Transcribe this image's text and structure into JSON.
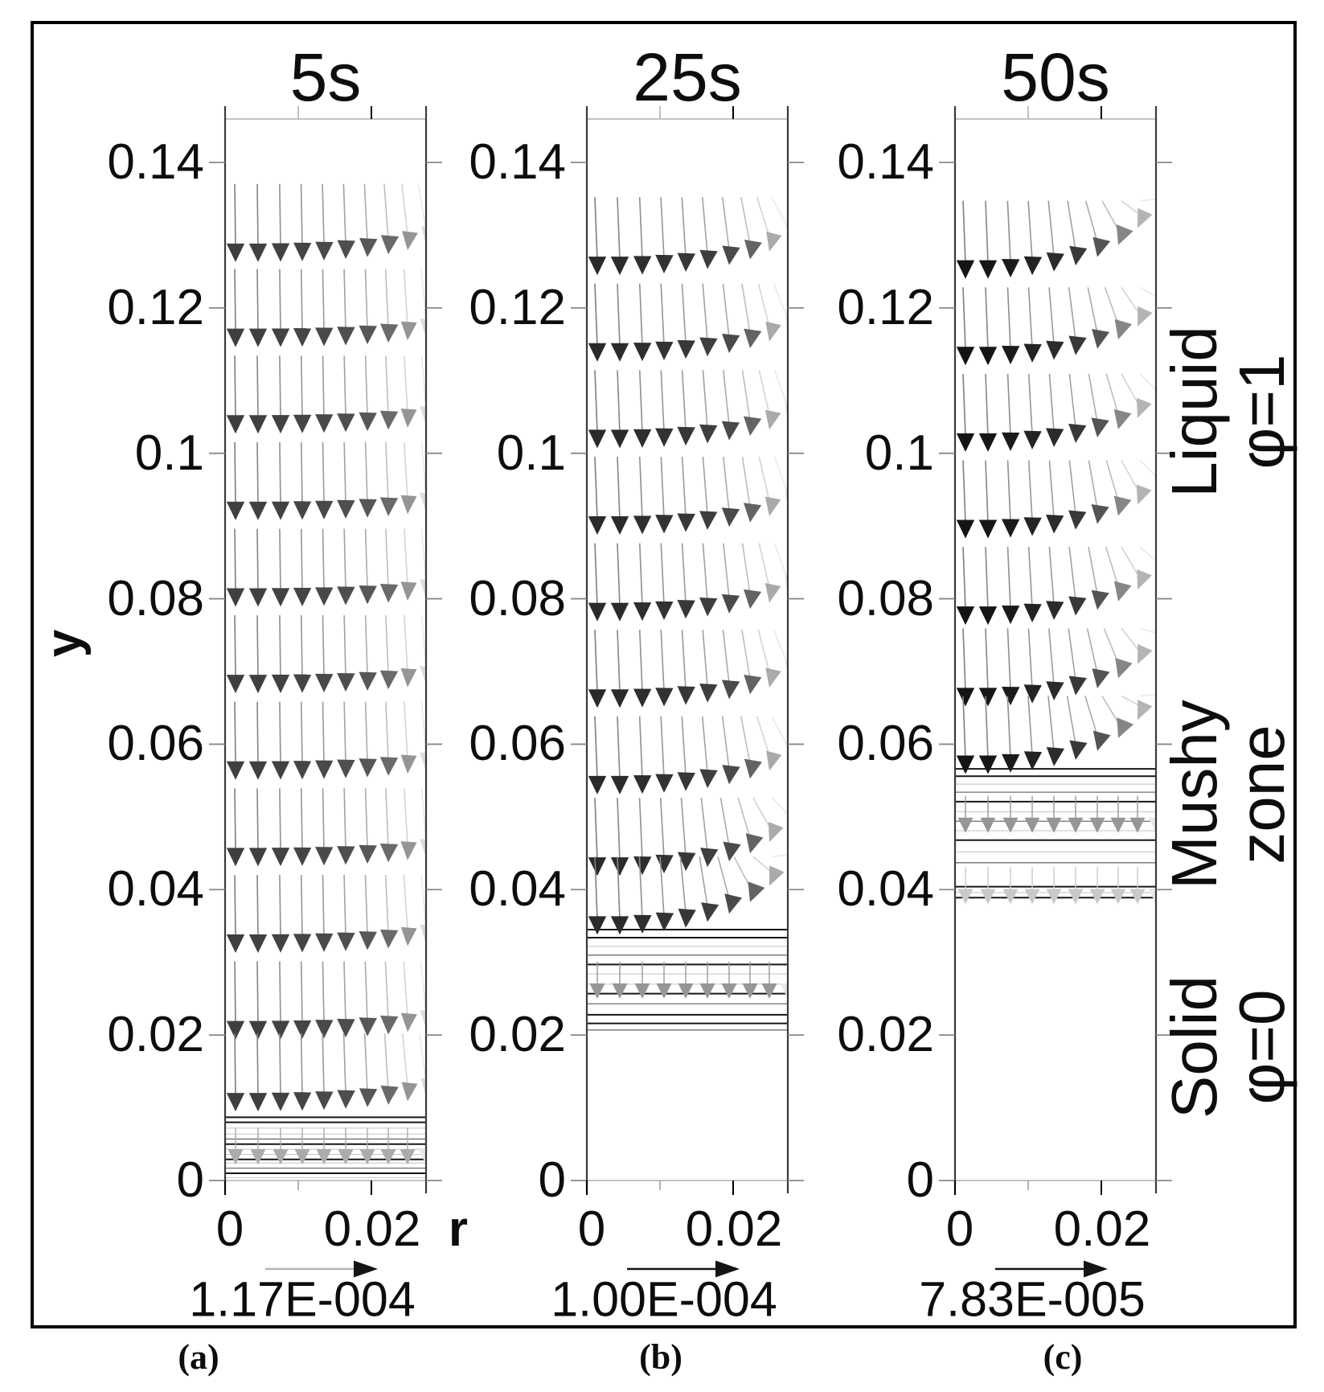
{
  "axis": {
    "x_title": "r",
    "y_title": "y"
  },
  "zones": [
    {
      "line1": "Liquid",
      "line2": "φ=1"
    },
    {
      "line1": "Mushy",
      "line2": "zone"
    },
    {
      "line1": "Solid",
      "line2": "φ=0"
    }
  ],
  "panels": [
    {
      "letter": "(a)",
      "title": "5s",
      "ref_value": "1.17E-004",
      "y_tick_labels": [
        "0.14",
        "0.12",
        "0.1",
        "0.08",
        "0.06",
        "0.04",
        "0.02",
        "0"
      ],
      "x_tick_labels": [
        "0",
        "0.02"
      ]
    },
    {
      "letter": "(b)",
      "title": "25s",
      "ref_value": "1.00E-004",
      "y_tick_labels": [
        "0.14",
        "0.12",
        "0.1",
        "0.08",
        "0.06",
        "0.04",
        "0.02",
        "0"
      ],
      "x_tick_labels": [
        "0",
        "0.02"
      ]
    },
    {
      "letter": "(c)",
      "title": "50s",
      "ref_value": "7.83E-005",
      "y_tick_labels": [
        "0.14",
        "0.12",
        "0.1",
        "0.08",
        "0.06",
        "0.04",
        "0.02",
        "0"
      ],
      "x_tick_labels": [
        "0",
        "0.02"
      ]
    }
  ],
  "chart_data": [
    {
      "type": "quiver",
      "title": "5s",
      "xlabel": "r",
      "ylabel": "y",
      "xlim": [
        0,
        0.0275
      ],
      "ylim": [
        0,
        0.146
      ],
      "x_ticks": [
        0,
        0.01,
        0.02
      ],
      "y_ticks": [
        0,
        0.02,
        0.04,
        0.06,
        0.08,
        0.1,
        0.12,
        0.14
      ],
      "reference_vector_label": "1.17E-004",
      "reference_vector_magnitude": 0.000117,
      "flow_direction": "downward (-y), bending toward +r near the right wall",
      "arrow_columns_r": [
        0.0014,
        0.0045,
        0.0076,
        0.0105,
        0.0135,
        0.0165,
        0.0195,
        0.0223,
        0.0249,
        0.0275
      ],
      "arrow_rows": [
        [
          0.1263,
          0.35
        ],
        [
          0.1146,
          0.2
        ],
        [
          0.1027,
          0.18
        ],
        [
          0.0908,
          0.18
        ],
        [
          0.0789,
          0.18
        ],
        [
          0.067,
          0.18
        ],
        [
          0.0551,
          0.18
        ],
        [
          0.0432,
          0.18
        ],
        [
          0.0313,
          0.2
        ],
        [
          0.0194,
          0.22
        ],
        [
          0.0095,
          0.3
        ]
      ],
      "mushy_arrow_rows": [
        {
          "y": 0.0022,
          "tone": "mid-light"
        }
      ],
      "mushy_zone_y": [
        0,
        0.0087
      ],
      "mushy_contours": [
        [
          0.0087,
          "d"
        ],
        [
          0.008,
          "d"
        ],
        [
          0.0072,
          "l"
        ],
        [
          0.0064,
          "l"
        ],
        [
          0.0057,
          "m"
        ],
        [
          0.005,
          "d"
        ],
        [
          0.0043,
          "l"
        ],
        [
          0.0036,
          "l"
        ],
        [
          0.0029,
          "d"
        ],
        [
          0.0024,
          "l"
        ],
        [
          0.0017,
          "m"
        ],
        [
          0.001,
          "d"
        ],
        [
          0.0004,
          "l"
        ]
      ]
    },
    {
      "type": "quiver",
      "title": "25s",
      "xlabel": "r",
      "ylabel": "y",
      "xlim": [
        0,
        0.0275
      ],
      "ylim": [
        0,
        0.146
      ],
      "x_ticks": [
        0,
        0.01,
        0.02
      ],
      "y_ticks": [
        0,
        0.02,
        0.04,
        0.06,
        0.08,
        0.1,
        0.12,
        0.14
      ],
      "reference_vector_label": "1.00E-004",
      "reference_vector_magnitude": 0.0001,
      "flow_direction": "downward (-y), bending toward +r near the right wall and above the mushy front",
      "arrow_columns_r": [
        0.0014,
        0.0045,
        0.0076,
        0.0105,
        0.0135,
        0.0165,
        0.0195,
        0.0223,
        0.0249,
        0.0275
      ],
      "arrow_rows": [
        [
          0.1245,
          0.7
        ],
        [
          0.1126,
          0.6
        ],
        [
          0.1007,
          0.55
        ],
        [
          0.0888,
          0.55
        ],
        [
          0.0769,
          0.55
        ],
        [
          0.065,
          0.6
        ],
        [
          0.0531,
          0.7
        ],
        [
          0.0419,
          1.0
        ],
        [
          0.0338,
          1.45
        ]
      ],
      "mushy_arrow_rows": [
        {
          "y": 0.025,
          "tone": "mid"
        }
      ],
      "mushy_zone_y": [
        0.0207,
        0.0345
      ],
      "mushy_contours": [
        [
          0.0345,
          "d"
        ],
        [
          0.0334,
          "d"
        ],
        [
          0.0322,
          "l"
        ],
        [
          0.031,
          "m"
        ],
        [
          0.0297,
          "d"
        ],
        [
          0.0284,
          "l"
        ],
        [
          0.027,
          "l"
        ],
        [
          0.0257,
          "d"
        ],
        [
          0.0243,
          "m"
        ],
        [
          0.0228,
          "d"
        ],
        [
          0.0216,
          "d"
        ],
        [
          0.0207,
          "m"
        ]
      ]
    },
    {
      "type": "quiver",
      "title": "50s",
      "xlabel": "r",
      "ylabel": "y",
      "xlim": [
        0,
        0.0275
      ],
      "ylim": [
        0,
        0.146
      ],
      "x_ticks": [
        0,
        0.01,
        0.02
      ],
      "y_ticks": [
        0,
        0.02,
        0.04,
        0.06,
        0.08,
        0.1,
        0.12,
        0.14
      ],
      "reference_vector_label": "7.83E-005",
      "reference_vector_magnitude": 7.83e-05,
      "flow_direction": "downward (-y), strongly bending toward +r near the right wall and above the mushy front",
      "arrow_columns_r": [
        0.0014,
        0.0045,
        0.0076,
        0.0105,
        0.0135,
        0.0165,
        0.0195,
        0.0223,
        0.0249,
        0.0275
      ],
      "arrow_rows": [
        [
          0.124,
          1.5
        ],
        [
          0.1121,
          1.15
        ],
        [
          0.1002,
          1.0
        ],
        [
          0.0883,
          1.0
        ],
        [
          0.0764,
          1.05
        ],
        [
          0.0652,
          1.25
        ],
        [
          0.0559,
          1.6
        ]
      ],
      "mushy_arrow_rows": [
        {
          "y": 0.0478,
          "tone": "mid"
        },
        {
          "y": 0.038,
          "tone": "faint"
        }
      ],
      "mushy_zone_y": [
        0.0389,
        0.0566
      ],
      "mushy_contours": [
        [
          0.0566,
          "d"
        ],
        [
          0.0556,
          "d"
        ],
        [
          0.0545,
          "l"
        ],
        [
          0.0534,
          "m"
        ],
        [
          0.0521,
          "d"
        ],
        [
          0.0507,
          "l"
        ],
        [
          0.0494,
          "m"
        ],
        [
          0.0481,
          "l"
        ],
        [
          0.0468,
          "d"
        ],
        [
          0.0452,
          "l"
        ],
        [
          0.0437,
          "m"
        ],
        [
          0.0404,
          "d"
        ],
        [
          0.0396,
          "l"
        ],
        [
          0.0389,
          "d"
        ]
      ]
    }
  ]
}
